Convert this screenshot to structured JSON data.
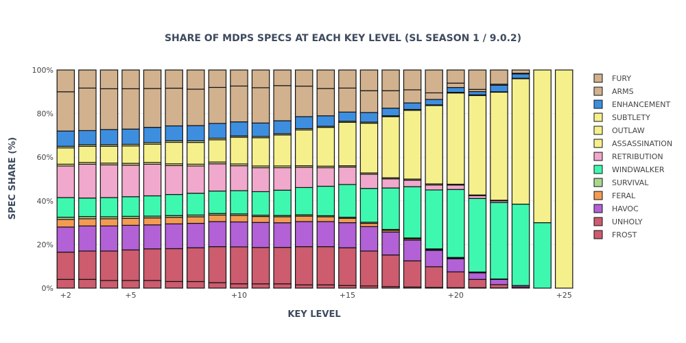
{
  "chart_data": {
    "type": "bar",
    "stacked": true,
    "normalized": true,
    "title": "SHARE OF MDPS SPECS AT EACH KEY LEVEL (SL SEASON 1 / 9.0.2)",
    "xlabel": "KEY LEVEL",
    "ylabel": "SPEC SHARE (%)",
    "ylim": [
      0,
      100
    ],
    "yticks": [
      "0%",
      "20%",
      "40%",
      "60%",
      "80%",
      "100%"
    ],
    "categories": [
      "+2",
      "+3",
      "+4",
      "+5",
      "+6",
      "+7",
      "+8",
      "+9",
      "+10",
      "+11",
      "+12",
      "+13",
      "+14",
      "+15",
      "+16",
      "+17",
      "+18",
      "+19",
      "+20",
      "+21",
      "+22",
      "+23",
      "+24",
      "+25"
    ],
    "xticks": [
      "+2",
      "+5",
      "+10",
      "+15",
      "+20",
      "+25"
    ],
    "legend_position": "right",
    "series": [
      {
        "name": "FROST",
        "color": "#cc5c6e",
        "values": [
          4,
          4,
          3.5,
          3.5,
          3.5,
          3,
          3,
          2.5,
          2,
          2,
          2,
          1.5,
          1.5,
          1.2,
          1,
          0.7,
          0.5,
          0.3,
          0.2,
          0.2,
          0.1,
          0,
          0,
          0
        ]
      },
      {
        "name": "UNHOLY",
        "color": "#cc5c6e",
        "values": [
          12.5,
          13,
          13.5,
          14,
          14.5,
          15,
          15.5,
          16.5,
          17,
          17,
          17,
          17.5,
          17.5,
          17.3,
          16,
          14.5,
          12,
          9.5,
          7.2,
          3.8,
          1.5,
          0.5,
          0,
          0
        ]
      },
      {
        "name": "HAVOC",
        "color": "#b261d6",
        "values": [
          11.5,
          11.5,
          11.5,
          11.3,
          11,
          11.3,
          11.2,
          11.5,
          11.5,
          11.7,
          11.5,
          11.5,
          11.5,
          11.5,
          11.2,
          10.5,
          9.5,
          7.5,
          6,
          3,
          2.4,
          0.7,
          0,
          0
        ]
      },
      {
        "name": "FERAL",
        "color": "#f49b53",
        "values": [
          3.5,
          3.3,
          3.3,
          3.2,
          3.2,
          3,
          3,
          3,
          3,
          2.8,
          2.8,
          2.5,
          2.2,
          2,
          1.5,
          0.8,
          0.6,
          0.4,
          0.3,
          0.2,
          0.1,
          0,
          0,
          0
        ]
      },
      {
        "name": "SURVIVAL",
        "color": "#a8d890",
        "values": [
          1,
          1,
          0.9,
          0.9,
          0.8,
          0.8,
          0.8,
          0.7,
          0.7,
          0.6,
          0.6,
          0.6,
          0.5,
          0.5,
          0.5,
          0.4,
          0.4,
          0.3,
          0.3,
          0.2,
          0.1,
          0,
          0,
          0
        ]
      },
      {
        "name": "WINDWALKER",
        "color": "#3ff8b0",
        "values": [
          9,
          8.5,
          8.8,
          9,
          9.3,
          9.6,
          10,
          10.3,
          10.7,
          11,
          11.8,
          12.5,
          13.5,
          15,
          15.5,
          19,
          23.5,
          27,
          31,
          33.7,
          35,
          37.3,
          30,
          0
        ]
      },
      {
        "name": "RETRIBUTION",
        "color": "#f0a8cc",
        "values": [
          14.5,
          15.5,
          15,
          14.5,
          14.5,
          13.2,
          12.5,
          12.5,
          11.5,
          11.2,
          10.5,
          9.3,
          8.5,
          8,
          6.5,
          4.2,
          3,
          2.3,
          2,
          1.3,
          0.8,
          0,
          0,
          0
        ]
      },
      {
        "name": "ASSASSINATION",
        "color": "#f5f08c",
        "values": [
          0.8,
          0.8,
          0.8,
          0.8,
          0.8,
          0.8,
          0.8,
          0.8,
          0.8,
          0.8,
          0.8,
          0.7,
          0.7,
          0.6,
          0.6,
          0.5,
          0.5,
          0.5,
          0.4,
          0.3,
          0.3,
          0,
          0,
          0
        ]
      },
      {
        "name": "OUTLAW",
        "color": "#f5f08c",
        "values": [
          7.5,
          7.4,
          7.7,
          8,
          8.4,
          9.8,
          10,
          10.2,
          12.3,
          13.2,
          14.5,
          16.4,
          17.8,
          19.9,
          22.8,
          28,
          31.5,
          35.9,
          41.6,
          45.6,
          49.5,
          57.5,
          70,
          100
        ]
      },
      {
        "name": "SUBTLETY",
        "color": "#f5f08c",
        "values": [
          0.7,
          0.7,
          0.7,
          0.7,
          0.7,
          0.7,
          0.7,
          0.7,
          0.6,
          0.6,
          0.6,
          0.6,
          0.5,
          0.5,
          0.5,
          0.4,
          0.4,
          0.3,
          0.3,
          0.3,
          0.2,
          0.2,
          0,
          0
        ]
      },
      {
        "name": "ENHANCEMENT",
        "color": "#3e8ee0",
        "values": [
          7,
          6.5,
          7,
          7,
          7,
          6.8,
          7,
          6.8,
          6.5,
          6.3,
          6,
          5.5,
          4.8,
          4.2,
          4.4,
          3.5,
          3,
          2.5,
          2.2,
          1.5,
          3,
          2,
          0,
          0
        ]
      },
      {
        "name": "ARMS",
        "color": "#d1b18e",
        "values": [
          18,
          19.5,
          18.7,
          18.5,
          17.8,
          17.2,
          16.7,
          16.5,
          16.5,
          16.5,
          16.4,
          14,
          12.5,
          11,
          10,
          8,
          6,
          3,
          2,
          1,
          0.5,
          0.3,
          0,
          0
        ]
      },
      {
        "name": "FURY",
        "color": "#d1b18e",
        "values": [
          10,
          8.3,
          8.6,
          8.6,
          8.5,
          8.3,
          8.8,
          8,
          7.4,
          8.3,
          7.3,
          7.4,
          8.5,
          8.3,
          9.5,
          9.5,
          9.1,
          10.5,
          6,
          8.9,
          6.5,
          1.5,
          0,
          0
        ]
      }
    ]
  }
}
